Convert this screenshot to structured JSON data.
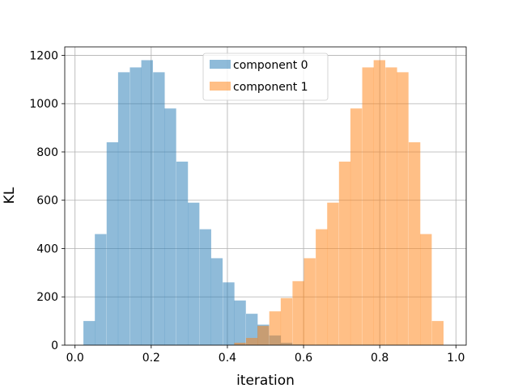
{
  "chart_data": {
    "type": "bar",
    "title": "",
    "xlabel": "iteration",
    "ylabel": "KL",
    "xlim": [
      -0.027,
      1.027
    ],
    "ylim": [
      0,
      1235
    ],
    "grid": true,
    "legend_position": "top-center",
    "xticks": [
      "0.0",
      "0.2",
      "0.4",
      "0.6",
      "0.8",
      "1.0"
    ],
    "yticks": [
      "0",
      "200",
      "400",
      "600",
      "800",
      "1000",
      "1200"
    ],
    "bin_width": 0.0305,
    "series": [
      {
        "name": "component 0",
        "color": "#1f77b4",
        "alpha": 0.5,
        "bins_start": [
          0.022,
          0.052,
          0.083,
          0.113,
          0.144,
          0.174,
          0.205,
          0.235,
          0.266,
          0.296,
          0.327,
          0.357,
          0.388,
          0.418,
          0.449,
          0.479,
          0.51,
          0.54,
          0.571
        ],
        "values": [
          100,
          460,
          840,
          1130,
          1150,
          1180,
          1130,
          980,
          760,
          590,
          480,
          360,
          260,
          185,
          130,
          85,
          40,
          10,
          3
        ]
      },
      {
        "name": "component 1",
        "color": "#ff7f0e",
        "alpha": 0.5,
        "bins_start": [
          0.418,
          0.449,
          0.479,
          0.51,
          0.54,
          0.571,
          0.601,
          0.632,
          0.662,
          0.693,
          0.723,
          0.754,
          0.784,
          0.815,
          0.845,
          0.876,
          0.906,
          0.937
        ],
        "values": [
          10,
          30,
          80,
          140,
          195,
          265,
          360,
          480,
          590,
          760,
          980,
          1150,
          1180,
          1150,
          1130,
          840,
          460,
          100
        ]
      }
    ]
  }
}
